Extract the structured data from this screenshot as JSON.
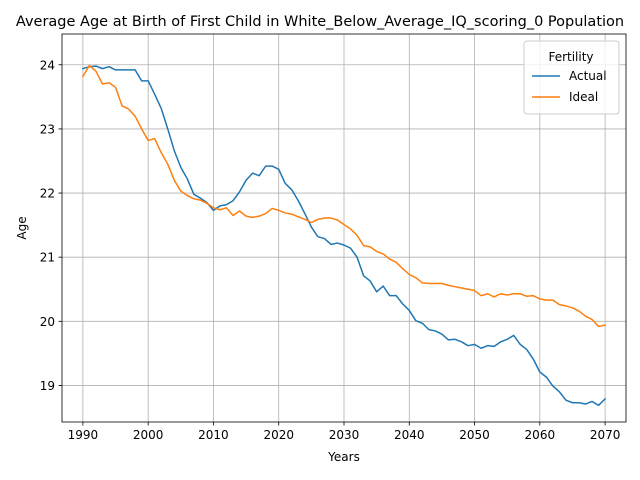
{
  "chart_data": {
    "type": "line",
    "title": "Average Age at Birth of First Child in White_Below_Average_IQ_scoring_0 Population",
    "xlabel": "Years",
    "ylabel": "Age",
    "xlim": [
      1986.8,
      2073.2
    ],
    "ylim": [
      18.43,
      24.48
    ],
    "xticks": [
      1990,
      2000,
      2010,
      2020,
      2030,
      2040,
      2050,
      2060,
      2070
    ],
    "yticks": [
      19,
      20,
      21,
      22,
      23,
      24
    ],
    "grid": true,
    "legend": {
      "title": "Fertility",
      "position": "top-right"
    },
    "x": [
      1990,
      1991,
      1992,
      1993,
      1994,
      1995,
      1996,
      1997,
      1998,
      1999,
      2000,
      2001,
      2002,
      2003,
      2004,
      2005,
      2006,
      2007,
      2008,
      2009,
      2010,
      2011,
      2012,
      2013,
      2014,
      2015,
      2016,
      2017,
      2018,
      2019,
      2020,
      2021,
      2022,
      2023,
      2024,
      2025,
      2026,
      2027,
      2028,
      2029,
      2030,
      2031,
      2032,
      2033,
      2034,
      2035,
      2036,
      2037,
      2038,
      2039,
      2040,
      2041,
      2042,
      2043,
      2044,
      2045,
      2046,
      2047,
      2048,
      2049,
      2050,
      2051,
      2052,
      2053,
      2054,
      2055,
      2056,
      2057,
      2058,
      2059,
      2060,
      2061,
      2062,
      2063,
      2064,
      2065,
      2066,
      2067,
      2068,
      2069,
      2070
    ],
    "series": [
      {
        "name": "Actual",
        "color": "#1f77b4",
        "values": [
          23.94,
          23.97,
          23.98,
          23.94,
          23.97,
          23.92,
          23.92,
          23.92,
          23.92,
          23.75,
          23.75,
          23.54,
          23.32,
          23.0,
          22.66,
          22.4,
          22.22,
          21.98,
          21.92,
          21.85,
          21.73,
          21.8,
          21.82,
          21.88,
          22.02,
          22.2,
          22.31,
          22.27,
          22.42,
          22.42,
          22.37,
          22.15,
          22.05,
          21.88,
          21.68,
          21.47,
          21.32,
          21.29,
          21.2,
          21.22,
          21.19,
          21.14,
          21.0,
          20.71,
          20.63,
          20.46,
          20.55,
          20.4,
          20.4,
          20.27,
          20.17,
          20.01,
          19.97,
          19.87,
          19.85,
          19.8,
          19.71,
          19.72,
          19.68,
          19.62,
          19.64,
          19.58,
          19.62,
          19.61,
          19.68,
          19.72,
          19.78,
          19.64,
          19.56,
          19.41,
          19.21,
          19.13,
          18.99,
          18.9,
          18.77,
          18.73,
          18.73,
          18.71,
          18.75,
          18.69,
          18.79
        ]
      },
      {
        "name": "Ideal",
        "color": "#ff7f0e",
        "values": [
          23.82,
          23.99,
          23.9,
          23.7,
          23.72,
          23.65,
          23.36,
          23.31,
          23.2,
          23.0,
          22.82,
          22.85,
          22.63,
          22.45,
          22.2,
          22.03,
          21.96,
          21.91,
          21.89,
          21.84,
          21.77,
          21.74,
          21.77,
          21.65,
          21.72,
          21.64,
          21.62,
          21.64,
          21.68,
          21.76,
          21.73,
          21.69,
          21.67,
          21.63,
          21.59,
          21.54,
          21.59,
          21.61,
          21.61,
          21.58,
          21.51,
          21.44,
          21.34,
          21.18,
          21.16,
          21.09,
          21.05,
          20.97,
          20.92,
          20.82,
          20.73,
          20.68,
          20.6,
          20.59,
          20.59,
          20.59,
          20.56,
          20.54,
          20.52,
          20.5,
          20.48,
          20.4,
          20.43,
          20.38,
          20.43,
          20.41,
          20.43,
          20.43,
          20.39,
          20.4,
          20.35,
          20.33,
          20.33,
          20.26,
          20.24,
          20.21,
          20.16,
          20.08,
          20.03,
          19.92,
          19.94
        ]
      }
    ]
  }
}
